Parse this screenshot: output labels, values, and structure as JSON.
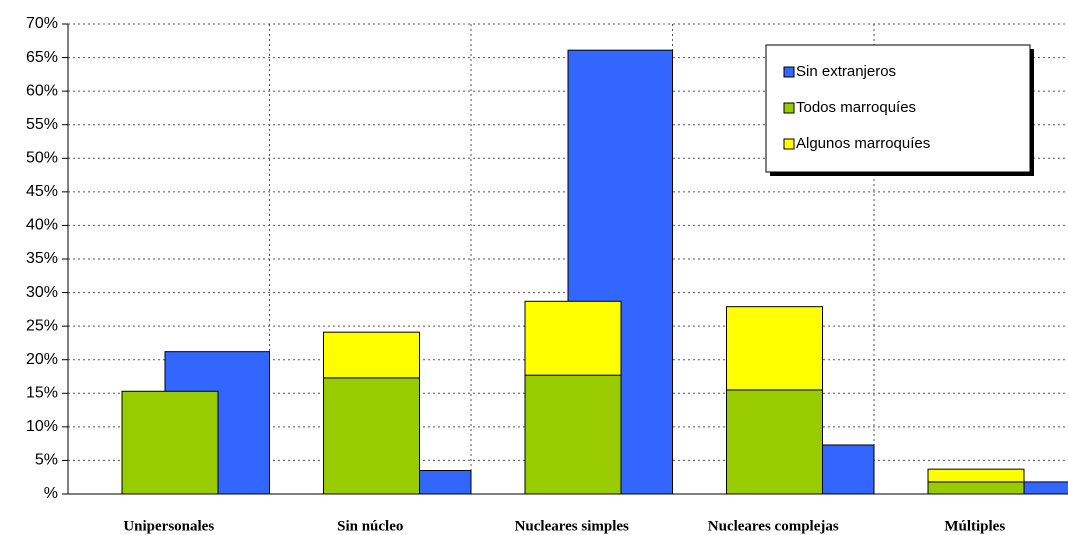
{
  "chart_data": {
    "type": "bar",
    "categories": [
      "Unipersonales",
      "Sin núcleo",
      "Nucleares simples",
      "Nucleares complejas",
      "Múltiples"
    ],
    "series": [
      {
        "name": "Sin extranjeros",
        "color": "#3366ff",
        "values": [
          21.2,
          3.5,
          66.1,
          7.3,
          1.8
        ]
      },
      {
        "name": "Todos marroquíes",
        "color": "#99cc00",
        "values": [
          15.3,
          17.3,
          17.7,
          15.5,
          1.8
        ]
      },
      {
        "name": "Algunos marroquíes",
        "color": "#ffff00",
        "values": [
          0,
          6.8,
          11.0,
          12.4,
          1.9
        ]
      }
    ],
    "ylim": [
      0,
      70
    ],
    "yticks": [
      {
        "value": 0,
        "label": "%"
      },
      {
        "value": 5,
        "label": "5%"
      },
      {
        "value": 10,
        "label": "10%"
      },
      {
        "value": 15,
        "label": "15%"
      },
      {
        "value": 20,
        "label": "20%"
      },
      {
        "value": 25,
        "label": "25%"
      },
      {
        "value": 30,
        "label": "30%"
      },
      {
        "value": 35,
        "label": "35%"
      },
      {
        "value": 40,
        "label": "40%"
      },
      {
        "value": 45,
        "label": "45%"
      },
      {
        "value": 50,
        "label": "50%"
      },
      {
        "value": 55,
        "label": "55%"
      },
      {
        "value": 60,
        "label": "60%"
      },
      {
        "value": 65,
        "label": "65%"
      },
      {
        "value": 70,
        "label": "70%"
      }
    ],
    "grid": true,
    "legend": "top-right"
  }
}
